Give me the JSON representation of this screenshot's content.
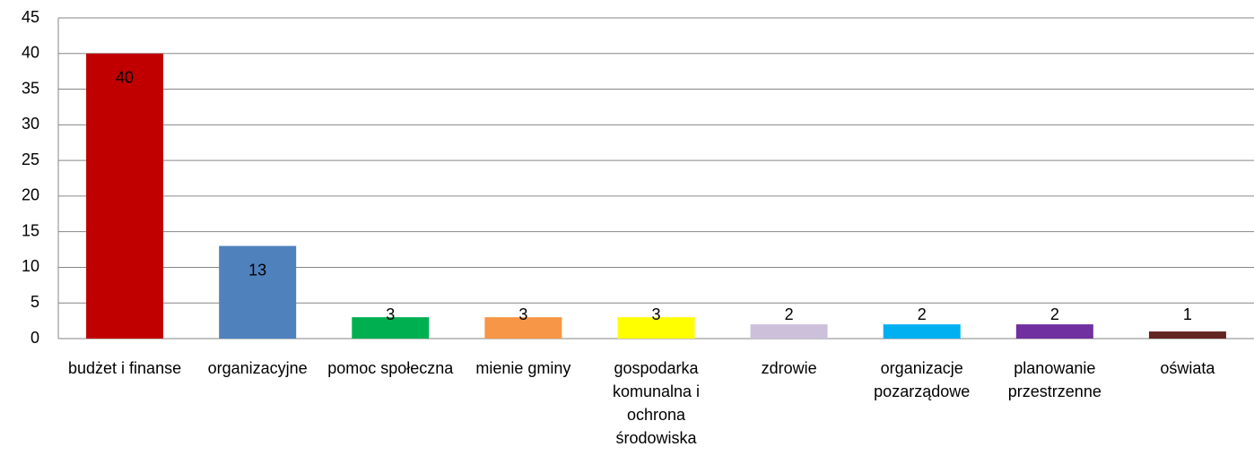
{
  "chart_data": {
    "type": "bar",
    "categories": [
      "budżet i finanse",
      "organizacyjne",
      "pomoc społeczna",
      "mienie gminy",
      "gospodarka komunalna i ochrona środowiska",
      "zdrowie",
      "organizacje pozarządowe",
      "planowanie przestrzenne",
      "oświata"
    ],
    "values": [
      40,
      13,
      3,
      3,
      3,
      2,
      2,
      2,
      1
    ],
    "colors": [
      "#c00000",
      "#4f81bd",
      "#00b050",
      "#f79646",
      "#ffff00",
      "#ccc0da",
      "#00b0f0",
      "#7030a0",
      "#632523"
    ],
    "ylim": [
      0,
      45
    ],
    "yticks": [
      0,
      5,
      10,
      15,
      20,
      25,
      30,
      35,
      40,
      45
    ],
    "grid": true
  }
}
